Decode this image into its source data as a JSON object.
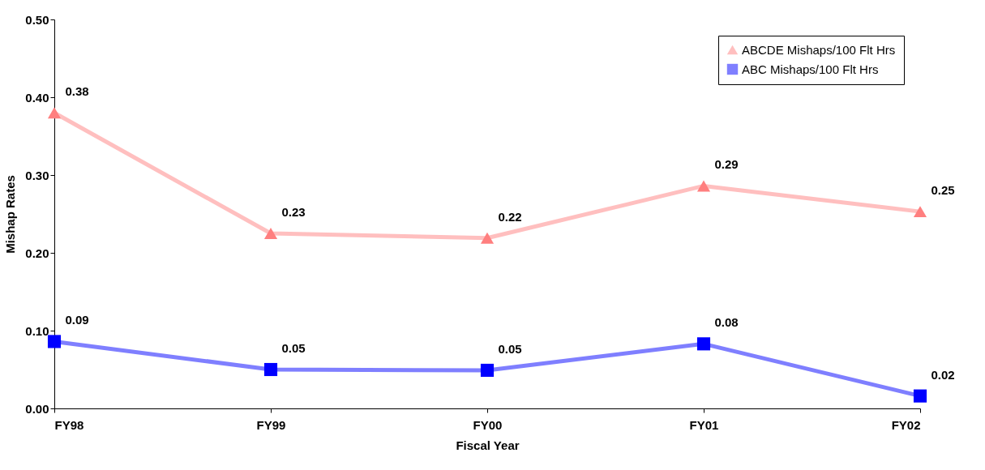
{
  "chart_data": {
    "type": "line",
    "xlabel": "Fiscal Year",
    "ylabel": "Mishap Rates",
    "categories": [
      "FY98",
      "FY99",
      "FY00",
      "FY01",
      "FY02"
    ],
    "series": [
      {
        "name": "ABCDE Mishaps/100 Flt Hrs",
        "color": "#ff7f7f",
        "marker": "triangle",
        "values": [
          0.38,
          0.225,
          0.219,
          0.286,
          0.253
        ],
        "value_labels": [
          "0.38",
          "0.23",
          "0.22",
          "0.29",
          "0.25"
        ]
      },
      {
        "name": "ABC Mishaps/100 Flt Hrs",
        "color": "#0000ff",
        "marker": "square",
        "values": [
          0.086,
          0.05,
          0.049,
          0.083,
          0.016
        ],
        "value_labels": [
          "0.09",
          "0.05",
          "0.05",
          "0.08",
          "0.02"
        ]
      }
    ],
    "ylim": [
      0,
      0.5
    ],
    "yticks": [
      {
        "value": 0,
        "label": "0.00"
      },
      {
        "value": 0.1,
        "label": "0.10"
      },
      {
        "value": 0.2,
        "label": "0.20"
      },
      {
        "value": 0.3,
        "label": "0.30"
      },
      {
        "value": 0.4,
        "label": "0.40"
      },
      {
        "value": 0.5,
        "label": "0.50"
      }
    ],
    "grid": false,
    "legend": "top right",
    "line_style": "solid"
  }
}
